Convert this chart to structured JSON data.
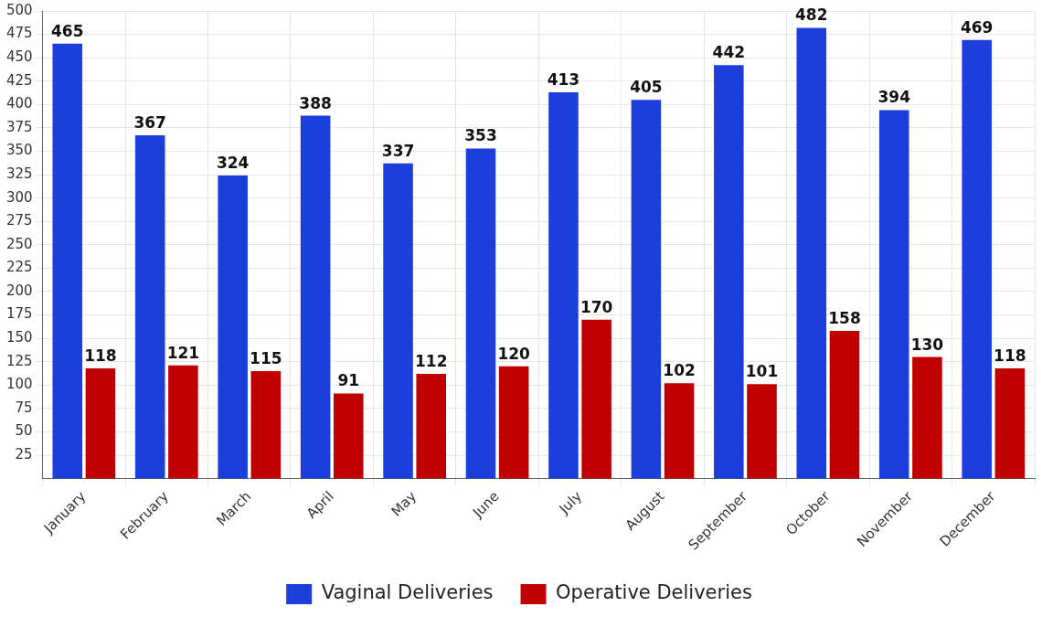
{
  "chart_data": {
    "type": "bar",
    "categories": [
      "January",
      "February",
      "March",
      "April",
      "May",
      "June",
      "July",
      "August",
      "September",
      "October",
      "November",
      "December"
    ],
    "series": [
      {
        "name": "Vaginal Deliveries",
        "color": "#1c3fdc",
        "values": [
          465,
          367,
          324,
          388,
          337,
          353,
          413,
          405,
          442,
          482,
          394,
          469
        ]
      },
      {
        "name": "Operative Deliveries",
        "color": "#c00000",
        "values": [
          118,
          121,
          115,
          91,
          112,
          120,
          170,
          102,
          101,
          158,
          130,
          118
        ]
      }
    ],
    "ylim": [
      0,
      500
    ],
    "yticks": [
      25,
      50,
      75,
      100,
      125,
      150,
      175,
      200,
      225,
      250,
      275,
      300,
      325,
      350,
      375,
      400,
      425,
      450,
      475,
      500
    ],
    "grid": true,
    "legend": "bottom",
    "data_labels": true
  }
}
